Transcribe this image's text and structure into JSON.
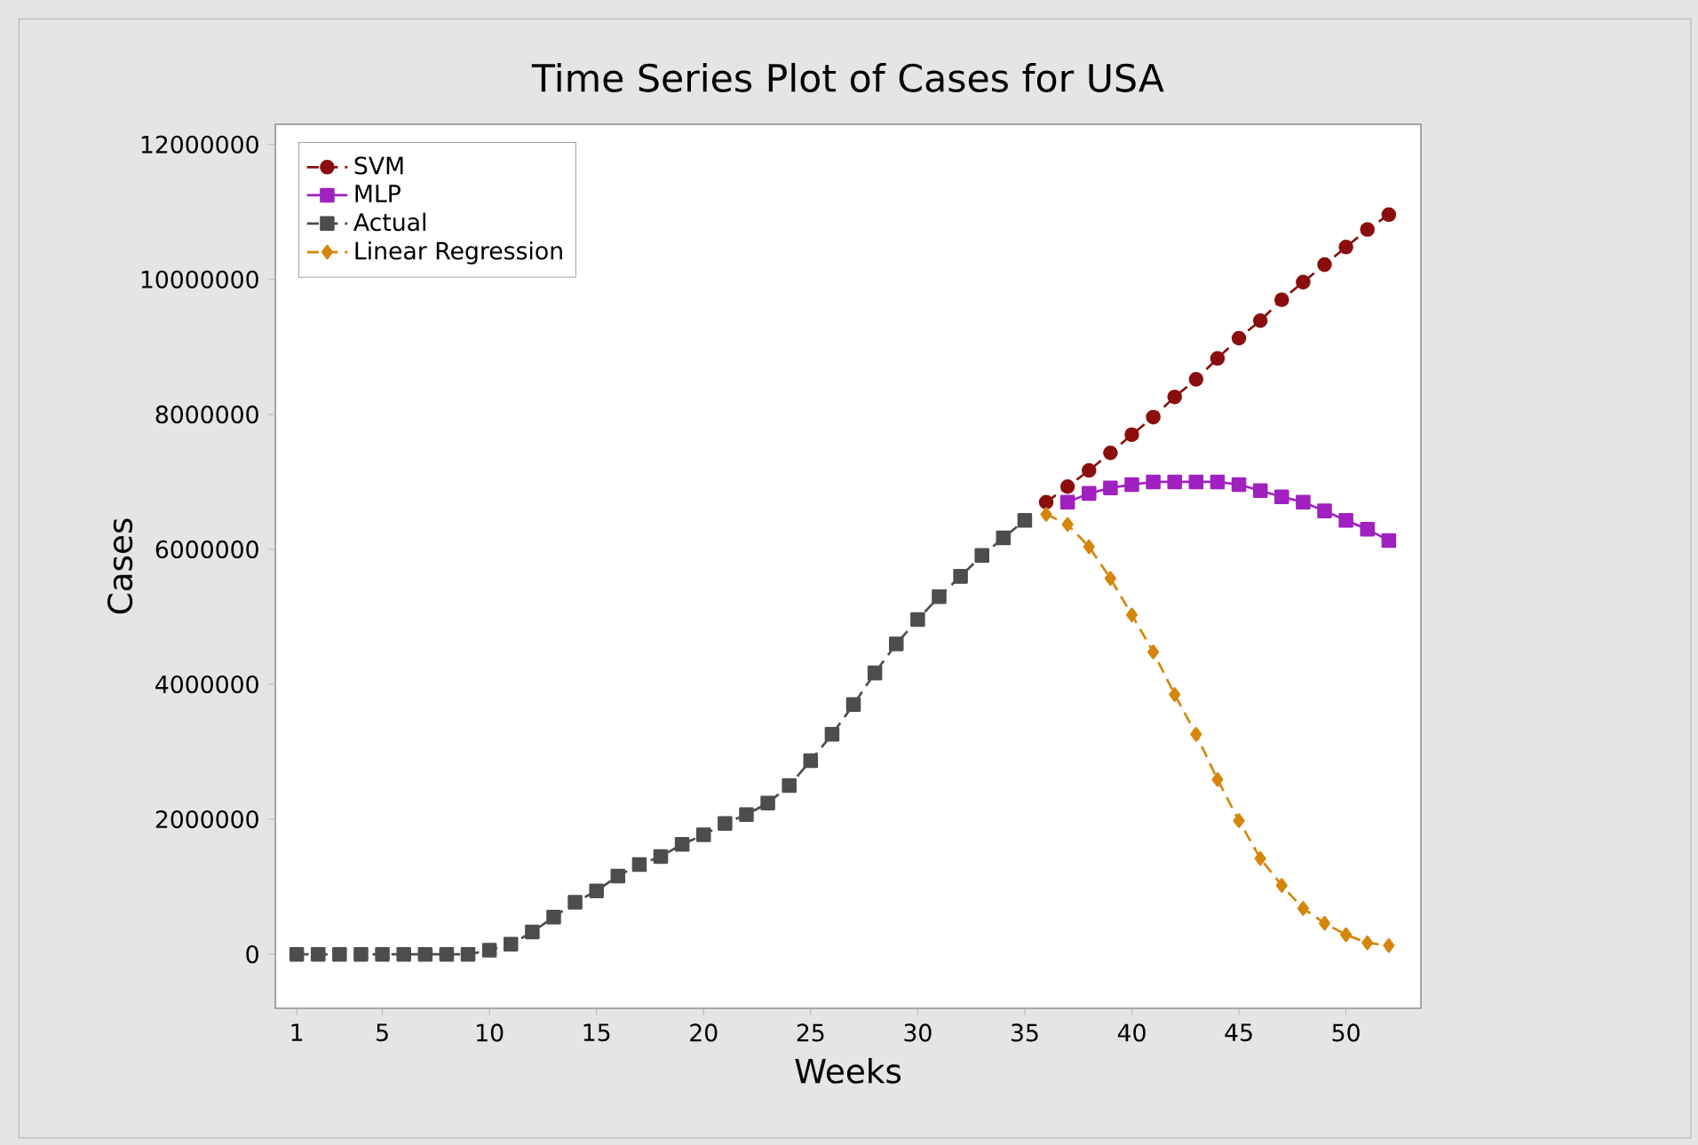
{
  "chart_data": {
    "type": "line",
    "title": "Time Series Plot of Cases for USA",
    "xlabel": "Weeks",
    "ylabel": "Cases",
    "xlim": [
      0,
      53.5
    ],
    "ylim": [
      -800000,
      12300000
    ],
    "xticks": [
      1,
      5,
      10,
      15,
      20,
      25,
      30,
      35,
      40,
      45,
      50
    ],
    "yticks": [
      {
        "value": 0,
        "label": "0"
      },
      {
        "value": 2000000,
        "label": "2000000"
      },
      {
        "value": 4000000,
        "label": "4000000"
      },
      {
        "value": 6000000,
        "label": "6000000"
      },
      {
        "value": 8000000,
        "label": "8000000"
      },
      {
        "value": 10000000,
        "label": "10000000"
      },
      {
        "value": 12000000,
        "label": "12000000"
      }
    ],
    "grid": false,
    "legend": "top left",
    "series": [
      {
        "name": "SVM",
        "color": "#8b0e0e",
        "marker": "circle",
        "line_style": "dashed",
        "x": [
          36,
          37,
          38,
          39,
          40,
          41,
          42,
          43,
          44,
          45,
          46,
          47,
          48,
          49,
          50,
          51,
          52
        ],
        "values": [
          6700000,
          6930000,
          7170000,
          7430000,
          7700000,
          7960000,
          8260000,
          8520000,
          8830000,
          9130000,
          9390000,
          9700000,
          9960000,
          10220000,
          10480000,
          10740000,
          10960000
        ]
      },
      {
        "name": "MLP",
        "color": "#a020c0",
        "marker": "square",
        "line_style": "solid",
        "x": [
          37,
          38,
          39,
          40,
          41,
          42,
          43,
          44,
          45,
          46,
          47,
          48,
          49,
          50,
          51,
          52
        ],
        "values": [
          6700000,
          6830000,
          6910000,
          6960000,
          7000000,
          7000000,
          7000000,
          7000000,
          6960000,
          6870000,
          6780000,
          6700000,
          6570000,
          6430000,
          6300000,
          6130000
        ]
      },
      {
        "name": "Actual",
        "color": "#4d4d4d",
        "marker": "square",
        "line_style": "dashed",
        "x": [
          1,
          2,
          3,
          4,
          5,
          6,
          7,
          8,
          9,
          10,
          11,
          12,
          13,
          14,
          15,
          16,
          17,
          18,
          19,
          20,
          21,
          22,
          23,
          24,
          25,
          26,
          27,
          28,
          29,
          30,
          31,
          32,
          33,
          34,
          35
        ],
        "values": [
          0,
          0,
          0,
          0,
          0,
          0,
          0,
          0,
          0,
          60000,
          150000,
          330000,
          550000,
          770000,
          940000,
          1160000,
          1330000,
          1450000,
          1630000,
          1770000,
          1940000,
          2070000,
          2240000,
          2500000,
          2870000,
          3260000,
          3700000,
          4170000,
          4600000,
          4960000,
          5300000,
          5600000,
          5910000,
          6170000,
          6430000
        ]
      },
      {
        "name": "Linear Regression",
        "color": "#d4860b",
        "marker": "diamond",
        "line_style": "dashed",
        "x": [
          36,
          37,
          38,
          39,
          40,
          41,
          42,
          43,
          44,
          45,
          46,
          47,
          48,
          49,
          50,
          51,
          52
        ],
        "values": [
          6520000,
          6370000,
          6040000,
          5570000,
          5030000,
          4480000,
          3850000,
          3260000,
          2590000,
          1980000,
          1420000,
          1020000,
          680000,
          460000,
          290000,
          170000,
          130000
        ]
      }
    ]
  }
}
